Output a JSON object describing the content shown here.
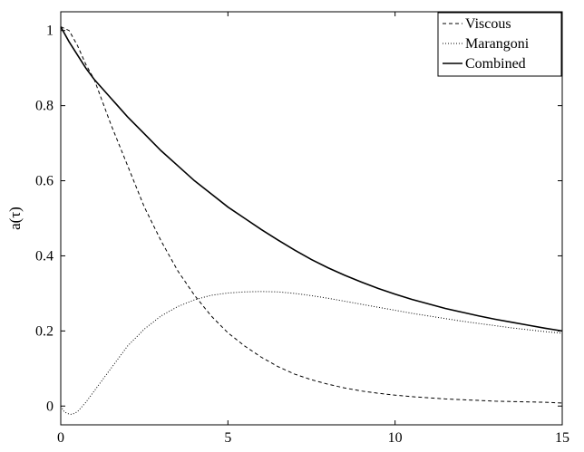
{
  "chart_data": {
    "type": "line",
    "title": "",
    "xlabel": "",
    "ylabel": "a(τ)",
    "xlim": [
      0,
      15
    ],
    "ylim": [
      -0.05,
      1.05
    ],
    "xticks": [
      0,
      5,
      10,
      15
    ],
    "xtick_labels": [
      "0",
      "5",
      "10",
      "15"
    ],
    "yticks": [
      0,
      0.2,
      0.4,
      0.6,
      0.8,
      1
    ],
    "ytick_labels": [
      "0",
      "0.2",
      "0.4",
      "0.6",
      "0.8",
      "1"
    ],
    "grid": false,
    "legend_position": "top-right",
    "series": [
      {
        "name": "Viscous",
        "style": "dashed",
        "color": "#000000",
        "x": [
          0,
          0.25,
          0.5,
          0.75,
          1,
          1.5,
          2,
          2.5,
          3,
          3.5,
          4,
          4.5,
          5,
          5.5,
          6,
          6.5,
          7,
          7.5,
          8,
          8.5,
          9,
          9.5,
          10,
          10.5,
          11,
          11.5,
          12,
          12.5,
          13,
          13.5,
          14,
          14.5,
          15
        ],
        "y": [
          1.01,
          1.0,
          0.96,
          0.91,
          0.87,
          0.75,
          0.64,
          0.53,
          0.44,
          0.36,
          0.295,
          0.24,
          0.195,
          0.16,
          0.13,
          0.105,
          0.085,
          0.07,
          0.058,
          0.048,
          0.04,
          0.034,
          0.029,
          0.025,
          0.022,
          0.019,
          0.017,
          0.015,
          0.013,
          0.012,
          0.011,
          0.01,
          0.008
        ]
      },
      {
        "name": "Marangoni",
        "style": "dotted",
        "color": "#000000",
        "x": [
          0,
          0.1,
          0.2,
          0.3,
          0.4,
          0.5,
          0.75,
          1,
          1.5,
          2,
          2.5,
          3,
          3.5,
          4,
          4.5,
          5,
          5.5,
          6,
          6.5,
          7,
          7.5,
          8,
          8.5,
          9,
          9.5,
          10,
          10.5,
          11,
          11.5,
          12,
          12.5,
          13,
          13.5,
          14,
          14.5,
          15
        ],
        "y": [
          0.0,
          -0.015,
          -0.02,
          -0.022,
          -0.02,
          -0.015,
          0.01,
          0.04,
          0.1,
          0.16,
          0.205,
          0.24,
          0.265,
          0.283,
          0.295,
          0.301,
          0.304,
          0.305,
          0.304,
          0.3,
          0.294,
          0.287,
          0.279,
          0.271,
          0.263,
          0.255,
          0.247,
          0.24,
          0.233,
          0.226,
          0.22,
          0.214,
          0.208,
          0.203,
          0.198,
          0.194
        ]
      },
      {
        "name": "Combined",
        "style": "solid",
        "color": "#000000",
        "x": [
          0,
          0.25,
          0.5,
          0.75,
          1,
          1.5,
          2,
          2.5,
          3,
          3.5,
          4,
          4.5,
          5,
          5.5,
          6,
          6.5,
          7,
          7.5,
          8,
          8.5,
          9,
          9.5,
          10,
          10.5,
          11,
          11.5,
          12,
          12.5,
          13,
          13.5,
          14,
          14.5,
          15
        ],
        "y": [
          1.01,
          0.97,
          0.935,
          0.9,
          0.87,
          0.82,
          0.77,
          0.725,
          0.68,
          0.64,
          0.6,
          0.565,
          0.53,
          0.5,
          0.47,
          0.442,
          0.415,
          0.39,
          0.368,
          0.348,
          0.33,
          0.313,
          0.298,
          0.284,
          0.272,
          0.26,
          0.25,
          0.24,
          0.231,
          0.223,
          0.215,
          0.207,
          0.2
        ]
      }
    ]
  }
}
